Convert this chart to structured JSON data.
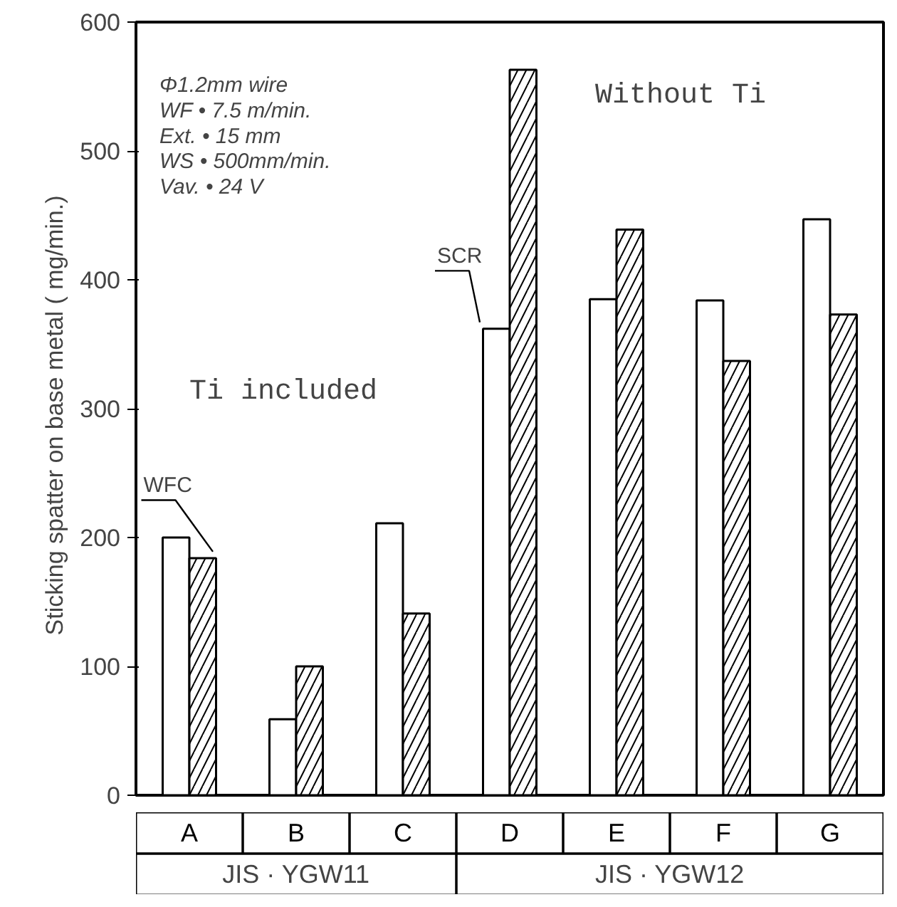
{
  "chart_data": {
    "type": "bar",
    "ylabel": "Sticking spatter on base metal   ( mg/min.)",
    "categories": [
      "A",
      "B",
      "C",
      "D",
      "E",
      "F",
      "G"
    ],
    "series": [
      {
        "name": "SCR",
        "color": "#ffffff",
        "values": [
          200,
          59,
          211,
          362,
          385,
          384,
          447
        ]
      },
      {
        "name": "WFC",
        "color": "#ffffff",
        "values": [
          184,
          100,
          141,
          563,
          439,
          337,
          373
        ]
      }
    ],
    "ylim": [
      0,
      600
    ],
    "yticks": [
      0,
      100,
      200,
      300,
      400,
      500,
      600
    ],
    "grid": false,
    "annotations": [
      "Φ1.2mm wire\nWF • 7.5 m/min.\nExt. • 15 mm\nWS • 500mm/min.\nVav. • 24 V",
      "Ti included",
      "Without Ti",
      "JIS · YGW11",
      "JIS · YGW12"
    ]
  }
}
